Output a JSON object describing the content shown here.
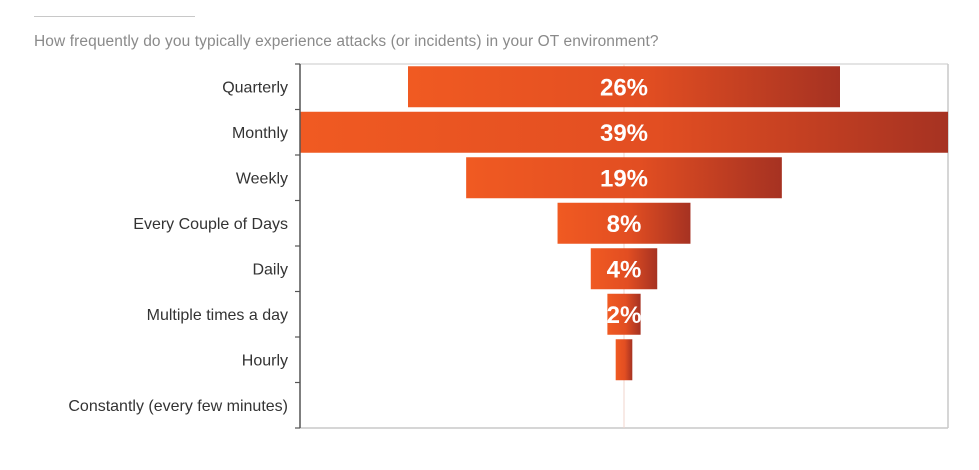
{
  "question": "How frequently do you typically experience attacks (or incidents) in your OT environment?",
  "colors": {
    "bar_light": "#f05a22",
    "bar_dark": "#a63222",
    "axis": "#555555",
    "plot_border": "#c9c9c9",
    "label_text": "#333333",
    "question_text": "#8a8a8a"
  },
  "chart_data": {
    "type": "bar",
    "orientation": "horizontal",
    "style": "funnel-centered",
    "categories": [
      "Quarterly",
      "Monthly",
      "Weekly",
      "Every Couple of Days",
      "Daily",
      "Multiple times a day",
      "Hourly",
      "Constantly (every few minutes)"
    ],
    "values": [
      26,
      39,
      19,
      8,
      4,
      2,
      1,
      0
    ],
    "data_labels": [
      "26%",
      "39%",
      "19%",
      "8%",
      "4%",
      "2%",
      "",
      ""
    ],
    "xlim": [
      0,
      39
    ],
    "grid": false,
    "legend": "none"
  }
}
